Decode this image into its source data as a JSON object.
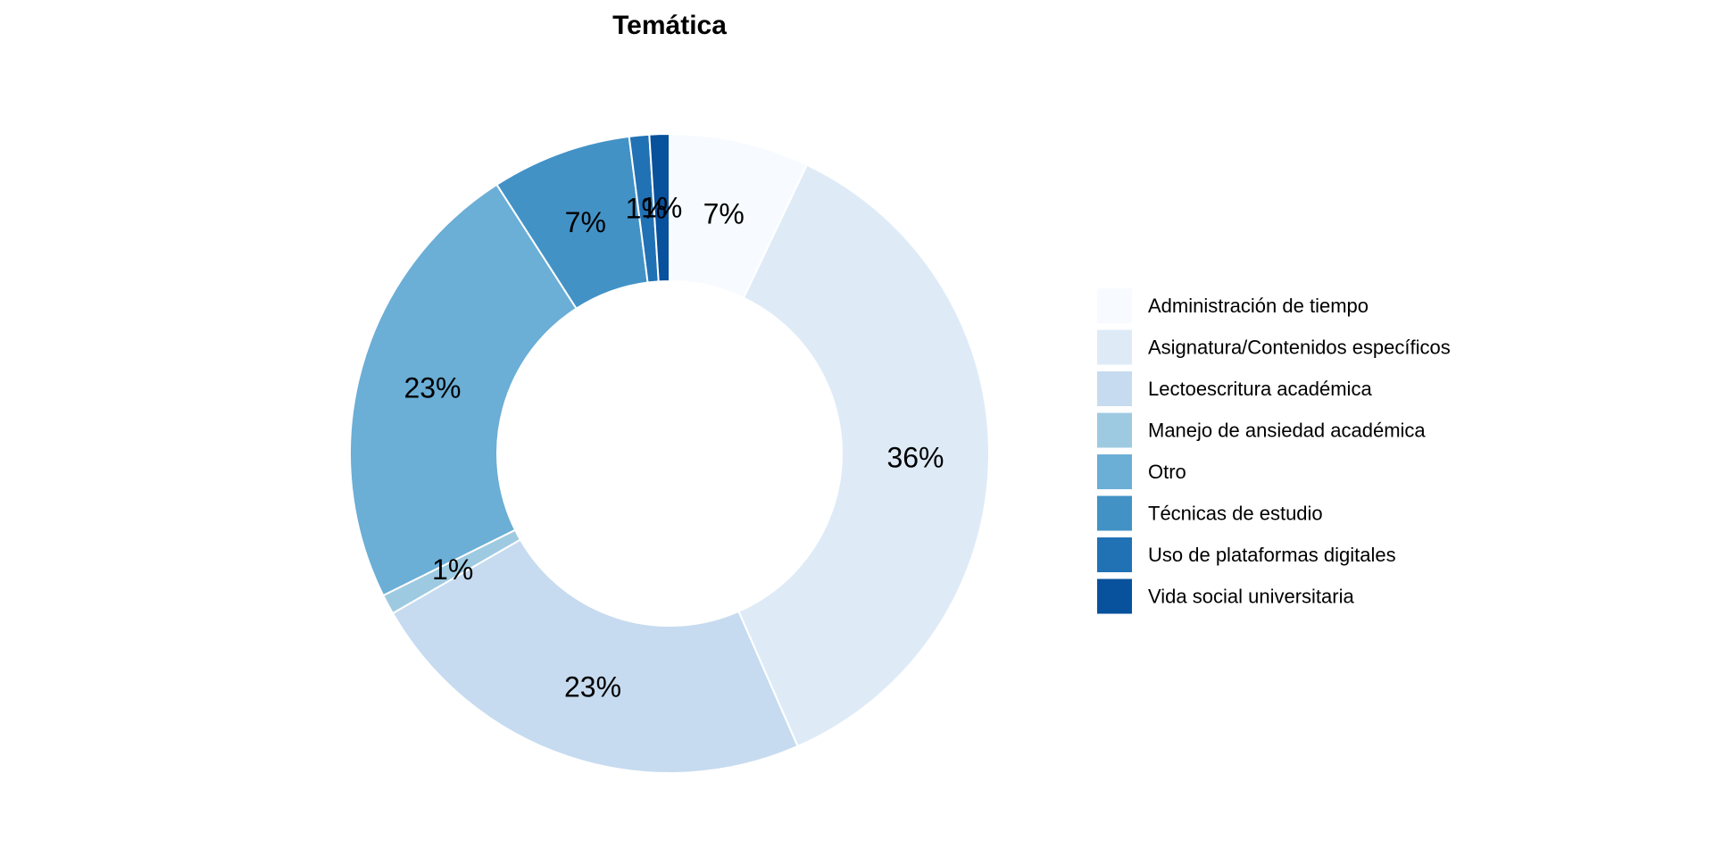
{
  "chart_data": {
    "type": "pie",
    "variant": "donut",
    "title": "Temática",
    "legend_position": "right",
    "slices": [
      {
        "label": "Administración de tiempo",
        "value": 7,
        "display": "7%",
        "color": "#F7FBFF"
      },
      {
        "label": "Asignatura/Contenidos específicos",
        "value": 36,
        "display": "36%",
        "color": "#DEEBF7"
      },
      {
        "label": "Lectoescritura académica",
        "value": 23,
        "display": "23%",
        "color": "#C6DBEF"
      },
      {
        "label": "Manejo de ansiedad académica",
        "value": 1,
        "display": "1%",
        "color": "#9ECAE1"
      },
      {
        "label": "Otro",
        "value": 23,
        "display": "23%",
        "color": "#6BAED6"
      },
      {
        "label": "Técnicas de estudio",
        "value": 7,
        "display": "7%",
        "color": "#4292C6"
      },
      {
        "label": "Uso de plataformas digitales",
        "value": 1,
        "display": "1%",
        "color": "#2171B5"
      },
      {
        "label": "Vida social universitaria",
        "value": 1,
        "display": "1%",
        "color": "#08519C"
      }
    ]
  }
}
